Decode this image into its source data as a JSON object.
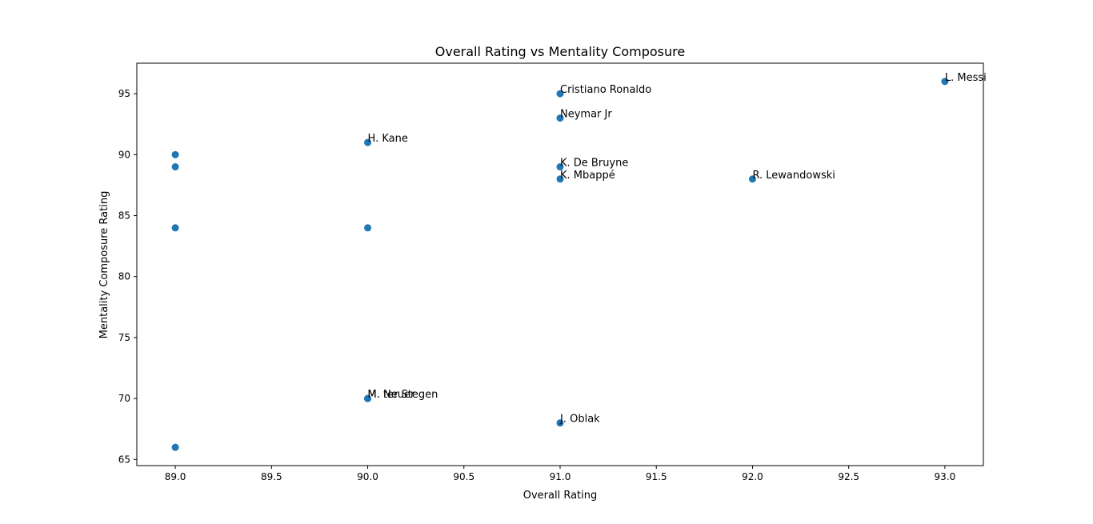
{
  "chart_data": {
    "type": "scatter",
    "title": "Overall Rating vs Mentality Composure",
    "xlabel": "Overall Rating",
    "ylabel": "Mentality Composure Rating",
    "xlim": [
      88.8,
      93.2
    ],
    "ylim": [
      64.5,
      97.5
    ],
    "xticks": [
      "89.0",
      "89.5",
      "90.0",
      "90.5",
      "91.0",
      "91.5",
      "92.0",
      "92.5",
      "93.0"
    ],
    "yticks": [
      "65",
      "70",
      "75",
      "80",
      "85",
      "90",
      "95"
    ],
    "grid": false,
    "marker_color": "#1f77b4",
    "points": [
      {
        "x": 93,
        "y": 96,
        "label": "L. Messi"
      },
      {
        "x": 92,
        "y": 88,
        "label": "R. Lewandowski"
      },
      {
        "x": 91,
        "y": 95,
        "label": "Cristiano Ronaldo"
      },
      {
        "x": 91,
        "y": 93,
        "label": "Neymar Jr"
      },
      {
        "x": 90,
        "y": 91,
        "label": "H. Kane"
      },
      {
        "x": 91,
        "y": 89,
        "label": "K. De Bruyne"
      },
      {
        "x": 91,
        "y": 88,
        "label": "K. Mbappé"
      },
      {
        "x": 90,
        "y": 70,
        "label": "M. ter Stegen"
      },
      {
        "x": 90,
        "y": 70,
        "label": "M. Neuer"
      },
      {
        "x": 91,
        "y": 68,
        "label": "J. Oblak"
      },
      {
        "x": 89,
        "y": 90,
        "label": ""
      },
      {
        "x": 89,
        "y": 89,
        "label": ""
      },
      {
        "x": 89,
        "y": 84,
        "label": ""
      },
      {
        "x": 90,
        "y": 84,
        "label": ""
      },
      {
        "x": 89,
        "y": 66,
        "label": ""
      }
    ]
  }
}
